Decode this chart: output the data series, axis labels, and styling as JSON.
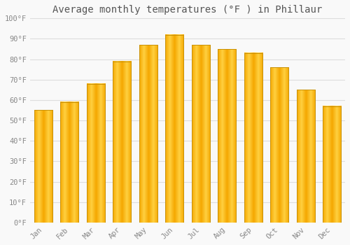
{
  "title": "Average monthly temperatures (°F ) in Phillaur",
  "months": [
    "Jan",
    "Feb",
    "Mar",
    "Apr",
    "May",
    "Jun",
    "Jul",
    "Aug",
    "Sep",
    "Oct",
    "Nov",
    "Dec"
  ],
  "values": [
    55,
    59,
    68,
    79,
    87,
    92,
    87,
    85,
    83,
    76,
    65,
    57
  ],
  "ylim": [
    0,
    100
  ],
  "yticks": [
    0,
    10,
    20,
    30,
    40,
    50,
    60,
    70,
    80,
    90,
    100
  ],
  "ytick_labels": [
    "0°F",
    "10°F",
    "20°F",
    "30°F",
    "40°F",
    "50°F",
    "60°F",
    "70°F",
    "80°F",
    "90°F",
    "100°F"
  ],
  "grid_color": "#dddddd",
  "background_color": "#f9f9f9",
  "title_fontsize": 10,
  "tick_fontsize": 7.5,
  "bar_edge_color": "#b8860b",
  "bar_width": 0.7,
  "bar_color_center": "#FFD040",
  "bar_color_edge": "#F5A800"
}
